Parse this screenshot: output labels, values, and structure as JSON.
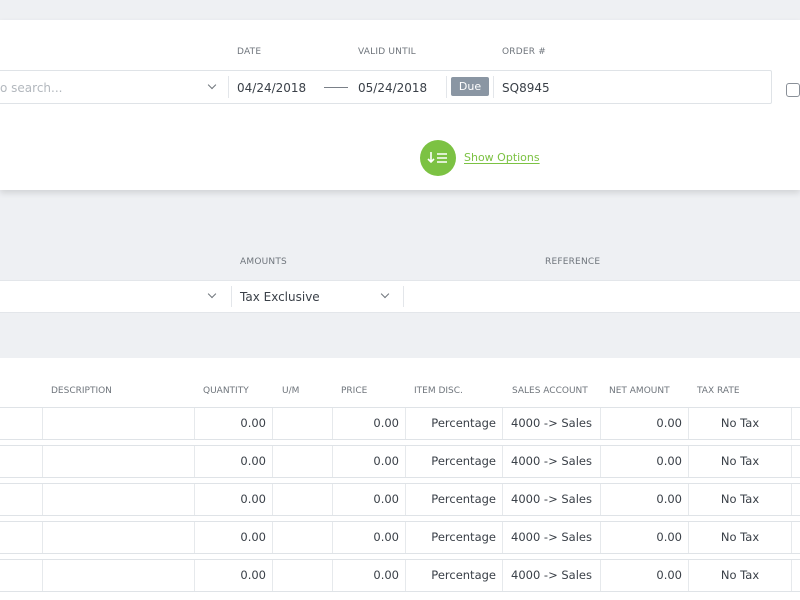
{
  "header": {
    "date_label": "DATE",
    "valid_until_label": "VALID UNTIL",
    "order_label": "ORDER #",
    "search_placeholder": "o search...",
    "date_value": "04/24/2018",
    "valid_until_value": "05/24/2018",
    "due_badge": "Due",
    "order_value": "SQ8945"
  },
  "options": {
    "link_label": "Show Options"
  },
  "settings": {
    "amounts_label": "AMOUNTS",
    "reference_label": "REFERENCE",
    "amounts_value": "Tax Exclusive",
    "reference_value": ""
  },
  "table": {
    "columns": [
      "DESCRIPTION",
      "QUANTITY",
      "U/M",
      "PRICE",
      "ITEM DISC.",
      "SALES ACCOUNT",
      "NET AMOUNT",
      "TAX RATE"
    ],
    "rows": [
      {
        "quantity": "0.00",
        "price": "0.00",
        "disc": "Percentage",
        "account": "4000 -> Sales",
        "net": "0.00",
        "tax": "No Tax"
      },
      {
        "quantity": "0.00",
        "price": "0.00",
        "disc": "Percentage",
        "account": "4000 -> Sales",
        "net": "0.00",
        "tax": "No Tax"
      },
      {
        "quantity": "0.00",
        "price": "0.00",
        "disc": "Percentage",
        "account": "4000 -> Sales",
        "net": "0.00",
        "tax": "No Tax"
      },
      {
        "quantity": "0.00",
        "price": "0.00",
        "disc": "Percentage",
        "account": "4000 -> Sales",
        "net": "0.00",
        "tax": "No Tax"
      },
      {
        "quantity": "0.00",
        "price": "0.00",
        "disc": "Percentage",
        "account": "4000 -> Sales",
        "net": "0.00",
        "tax": "No Tax"
      }
    ]
  },
  "colors": {
    "accent": "#7cc243",
    "badge": "#8a96a3"
  },
  "icons": {
    "options": "sort-down-lines-icon",
    "dropdown": "chevron-down-icon",
    "checkbox": "checkbox-icon"
  }
}
